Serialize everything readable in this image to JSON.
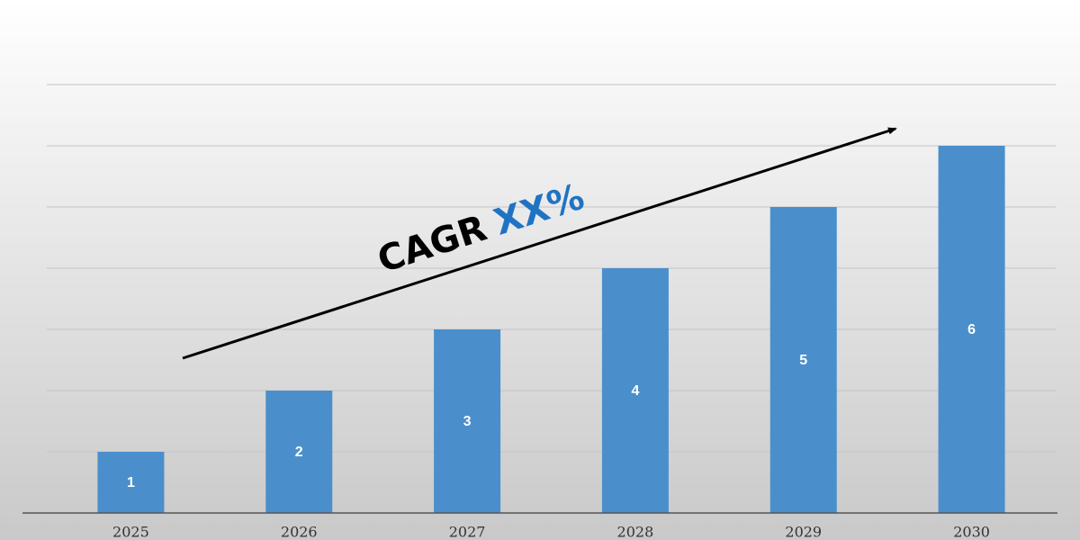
{
  "chart_data": {
    "type": "bar",
    "categories": [
      "2025",
      "2026",
      "2027",
      "2028",
      "2029",
      "2030"
    ],
    "values": [
      1,
      2,
      3,
      4,
      5,
      6
    ],
    "color": "#4a8fcc",
    "ylim": [
      0,
      7
    ],
    "yticks": [
      0,
      1,
      2,
      3,
      4,
      5,
      6,
      7
    ],
    "grid": true,
    "annotation": {
      "text": "CAGR",
      "highlight": "XX%",
      "highlight_color": "#1f73c4"
    }
  }
}
